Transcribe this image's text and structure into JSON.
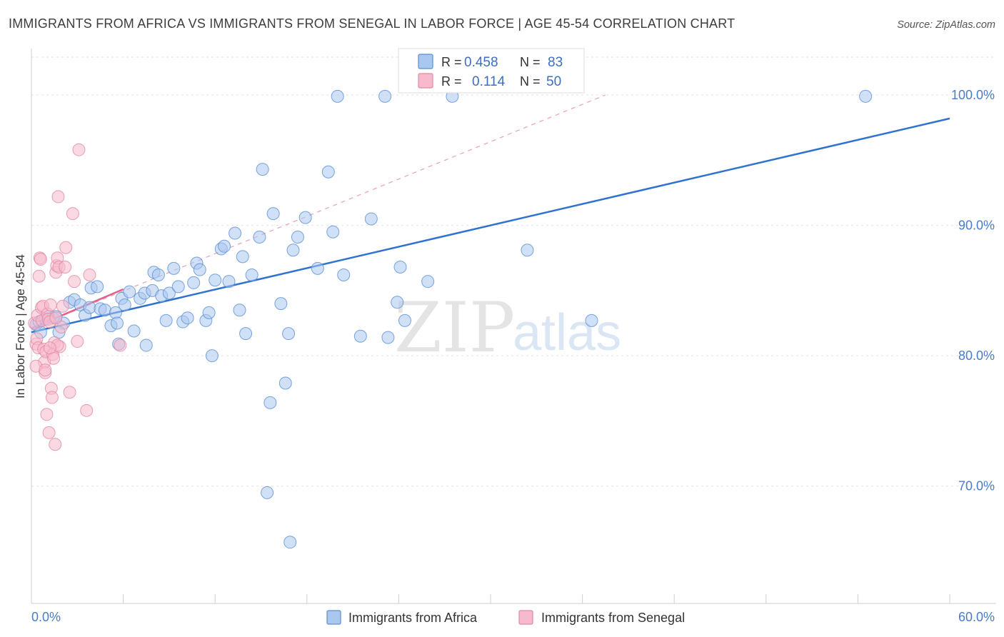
{
  "chart_data": {
    "type": "scatter",
    "title": "IMMIGRANTS FROM AFRICA VS IMMIGRANTS FROM SENEGAL IN LABOR FORCE | AGE 45-54 CORRELATION CHART",
    "source": "Source: ZipAtlas.com",
    "xlabel": "",
    "ylabel": "In Labor Force | Age 45-54",
    "xlim": [
      0,
      60
    ],
    "ylim": [
      61,
      104
    ],
    "x_tick_labels": [
      "0.0%",
      "60.0%"
    ],
    "y_ticks": [
      70,
      80,
      90,
      100
    ],
    "y_tick_labels": [
      "70.0%",
      "80.0%",
      "90.0%",
      "100.0%"
    ],
    "grid": true,
    "watermark": {
      "zip": "ZIP",
      "atlas": "atlas"
    },
    "legend_stats": [
      {
        "r_label": "R =",
        "r_value": "0.458",
        "n_label": "N =",
        "n_value": "83",
        "color": "#a9c7ef"
      },
      {
        "r_label": "R =",
        "r_value": "0.114",
        "n_label": "N =",
        "n_value": "50",
        "color": "#f7b9cc"
      }
    ],
    "series": [
      {
        "name": "Immigrants from Africa",
        "color": "#a9c7ef",
        "stroke": "#5a8fd6",
        "trend": {
          "x": [
            0,
            60
          ],
          "y": [
            81.8,
            98.2
          ],
          "color": "#2f72d0"
        },
        "points": [
          [
            0.3,
            82.4
          ],
          [
            0.5,
            82.6
          ],
          [
            0.9,
            82.8
          ],
          [
            1.1,
            83.0
          ],
          [
            1.4,
            82.9
          ],
          [
            2.1,
            82.5
          ],
          [
            1.8,
            81.8
          ],
          [
            2.5,
            84.1
          ],
          [
            2.8,
            84.3
          ],
          [
            3.2,
            83.9
          ],
          [
            3.5,
            83.1
          ],
          [
            3.8,
            83.7
          ],
          [
            3.9,
            85.2
          ],
          [
            4.3,
            85.3
          ],
          [
            4.5,
            83.6
          ],
          [
            4.8,
            83.5
          ],
          [
            5.2,
            82.3
          ],
          [
            5.5,
            83.3
          ],
          [
            5.6,
            82.5
          ],
          [
            5.7,
            80.9
          ],
          [
            5.9,
            84.4
          ],
          [
            6.1,
            83.9
          ],
          [
            6.4,
            84.9
          ],
          [
            6.7,
            81.9
          ],
          [
            7.1,
            84.4
          ],
          [
            7.4,
            84.8
          ],
          [
            7.5,
            80.8
          ],
          [
            7.9,
            85.0
          ],
          [
            8.0,
            86.4
          ],
          [
            8.3,
            86.2
          ],
          [
            8.5,
            84.6
          ],
          [
            8.8,
            82.7
          ],
          [
            9.0,
            84.8
          ],
          [
            9.3,
            86.7
          ],
          [
            9.6,
            85.3
          ],
          [
            9.9,
            82.6
          ],
          [
            10.2,
            82.9
          ],
          [
            10.6,
            85.6
          ],
          [
            10.8,
            87.1
          ],
          [
            11.0,
            86.6
          ],
          [
            11.4,
            82.7
          ],
          [
            11.6,
            83.3
          ],
          [
            11.8,
            80.0
          ],
          [
            12.0,
            85.8
          ],
          [
            12.4,
            88.2
          ],
          [
            12.6,
            88.4
          ],
          [
            12.9,
            85.7
          ],
          [
            13.3,
            89.4
          ],
          [
            13.6,
            83.5
          ],
          [
            13.8,
            87.6
          ],
          [
            14.0,
            81.7
          ],
          [
            14.4,
            86.2
          ],
          [
            14.9,
            89.1
          ],
          [
            15.1,
            94.3
          ],
          [
            15.4,
            69.5
          ],
          [
            15.6,
            76.4
          ],
          [
            15.8,
            90.9
          ],
          [
            16.3,
            84.0
          ],
          [
            16.6,
            77.9
          ],
          [
            16.8,
            81.7
          ],
          [
            17.1,
            88.1
          ],
          [
            17.4,
            89.1
          ],
          [
            16.9,
            65.7
          ],
          [
            17.9,
            90.6
          ],
          [
            18.7,
            86.7
          ],
          [
            19.4,
            94.1
          ],
          [
            19.7,
            89.5
          ],
          [
            20.0,
            99.9
          ],
          [
            20.4,
            86.2
          ],
          [
            21.5,
            81.5
          ],
          [
            22.2,
            90.5
          ],
          [
            23.1,
            99.9
          ],
          [
            23.3,
            81.4
          ],
          [
            23.9,
            84.1
          ],
          [
            24.1,
            86.8
          ],
          [
            24.4,
            82.7
          ],
          [
            25.9,
            85.7
          ],
          [
            27.5,
            99.9
          ],
          [
            32.4,
            88.1
          ],
          [
            36.6,
            82.7
          ],
          [
            54.5,
            99.9
          ],
          [
            0.6,
            81.8
          ],
          [
            1.6,
            83.0
          ]
        ]
      },
      {
        "name": "Immigrants from Senegal",
        "color": "#f7b9cc",
        "stroke": "#e287a3",
        "trend": {
          "x": [
            0,
            6.0
          ],
          "y": [
            82.1,
            85.1
          ],
          "color": "#e0628e"
        },
        "trend_dashed": {
          "x": [
            0,
            37.5
          ],
          "y": [
            82.1,
            100.0
          ],
          "color": "#e8a0b6"
        },
        "points": [
          [
            0.2,
            82.5
          ],
          [
            0.3,
            80.9
          ],
          [
            0.35,
            81.3
          ],
          [
            0.4,
            83.1
          ],
          [
            0.45,
            80.6
          ],
          [
            0.5,
            86.1
          ],
          [
            0.55,
            87.5
          ],
          [
            0.6,
            87.4
          ],
          [
            0.65,
            83.7
          ],
          [
            0.7,
            82.7
          ],
          [
            0.75,
            83.8
          ],
          [
            0.8,
            80.5
          ],
          [
            0.85,
            79.5
          ],
          [
            0.9,
            78.7
          ],
          [
            0.95,
            80.3
          ],
          [
            1.0,
            75.5
          ],
          [
            1.05,
            83.2
          ],
          [
            1.1,
            82.8
          ],
          [
            1.15,
            74.1
          ],
          [
            1.2,
            82.6
          ],
          [
            1.25,
            83.9
          ],
          [
            1.3,
            77.5
          ],
          [
            1.35,
            76.8
          ],
          [
            1.4,
            80.1
          ],
          [
            1.45,
            79.8
          ],
          [
            1.5,
            81.0
          ],
          [
            1.55,
            73.2
          ],
          [
            1.6,
            86.4
          ],
          [
            1.65,
            86.9
          ],
          [
            1.7,
            87.5
          ],
          [
            1.75,
            92.2
          ],
          [
            1.8,
            86.8
          ],
          [
            1.85,
            80.7
          ],
          [
            1.95,
            82.2
          ],
          [
            2.05,
            83.8
          ],
          [
            2.2,
            86.8
          ],
          [
            1.6,
            82.9
          ],
          [
            1.7,
            80.8
          ],
          [
            2.25,
            88.3
          ],
          [
            2.5,
            77.2
          ],
          [
            2.8,
            85.7
          ],
          [
            2.7,
            90.9
          ],
          [
            3.0,
            81.1
          ],
          [
            3.1,
            95.8
          ],
          [
            3.6,
            75.8
          ],
          [
            3.8,
            86.2
          ],
          [
            5.8,
            80.8
          ],
          [
            0.3,
            79.2
          ],
          [
            0.9,
            78.9
          ],
          [
            1.2,
            80.6
          ]
        ]
      }
    ]
  }
}
